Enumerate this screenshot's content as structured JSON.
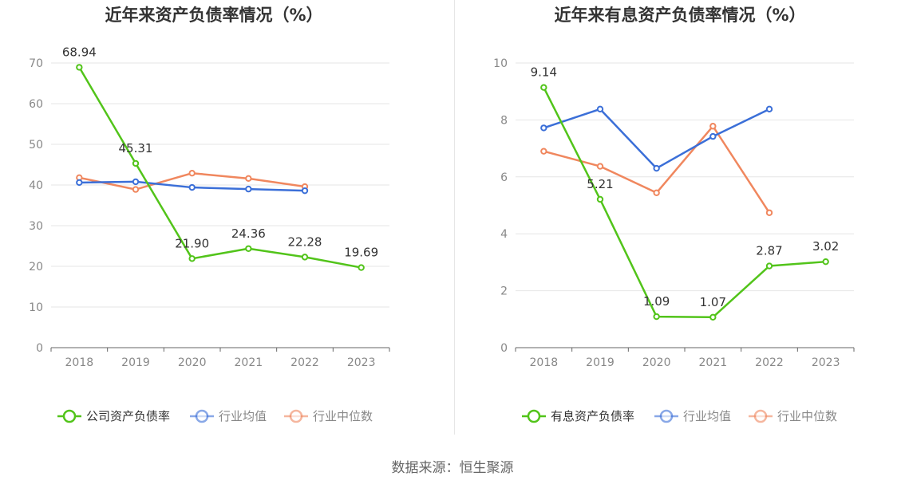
{
  "source": {
    "label": "数据来源：",
    "value": "恒生聚源"
  },
  "chart_data": [
    {
      "type": "line",
      "title": "近年来资产负债率情况（%）",
      "categories": [
        "2018",
        "2019",
        "2020",
        "2021",
        "2022",
        "2023"
      ],
      "ylim": [
        0,
        70
      ],
      "yticks": [
        0,
        10,
        20,
        30,
        40,
        50,
        60,
        70
      ],
      "grid": true,
      "legend_position": "bottom",
      "series": [
        {
          "name": "公司资产负债率",
          "color": "#52c41a",
          "show_labels": true,
          "values": [
            68.94,
            45.31,
            21.9,
            24.36,
            22.28,
            19.69
          ],
          "labels": [
            "68.94",
            "45.31",
            "21.90",
            "24.36",
            "22.28",
            "19.69"
          ]
        },
        {
          "name": "行业均值",
          "color": "#3b6fd8",
          "show_labels": false,
          "values": [
            40.6,
            40.8,
            39.4,
            39.0,
            38.6,
            null
          ]
        },
        {
          "name": "行业中位数",
          "color": "#f0875e",
          "show_labels": false,
          "values": [
            41.8,
            38.9,
            42.9,
            41.6,
            39.6,
            null
          ]
        }
      ]
    },
    {
      "type": "line",
      "title": "近年来有息资产负债率情况（%）",
      "categories": [
        "2018",
        "2019",
        "2020",
        "2021",
        "2022",
        "2023"
      ],
      "ylim": [
        0,
        10
      ],
      "yticks": [
        0,
        2,
        4,
        6,
        8,
        10
      ],
      "grid": true,
      "legend_position": "bottom",
      "series": [
        {
          "name": "有息资产负债率",
          "color": "#52c41a",
          "show_labels": true,
          "values": [
            9.14,
            5.21,
            1.09,
            1.07,
            2.87,
            3.02
          ],
          "labels": [
            "9.14",
            "5.21",
            "1.09",
            "1.07",
            "2.87",
            "3.02"
          ]
        },
        {
          "name": "行业均值",
          "color": "#3b6fd8",
          "show_labels": false,
          "values": [
            7.72,
            8.38,
            6.3,
            7.42,
            8.38,
            null
          ]
        },
        {
          "name": "行业中位数",
          "color": "#f0875e",
          "show_labels": false,
          "values": [
            6.9,
            6.37,
            5.44,
            7.78,
            4.74,
            null
          ]
        }
      ]
    }
  ]
}
